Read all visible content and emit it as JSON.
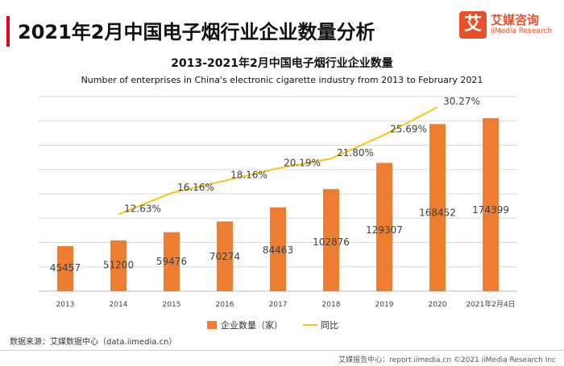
{
  "page": {
    "title": "2021年2月中国电子烟行业企业数量分析",
    "logo_glyph": "艾",
    "logo_cn": "艾媒咨询",
    "logo_en": "iiMedia Research",
    "source": "数据来源：艾媒数据中心（data.iimedia.cn）",
    "footer": "艾媒报告中心：report.iimedia.cn  ©2021  iiMedia Research  Inc"
  },
  "colors": {
    "bar": "#ed7d31",
    "line": "#f5c518",
    "accent": "#e2001a"
  },
  "chart_data": {
    "type": "bar",
    "title": "2013-2021年2月中国电子烟行业企业数量",
    "subtitle": "Number of enterprises in China's electronic cigarette industry from 2013 to February 2021",
    "categories": [
      "2013",
      "2014",
      "2015",
      "2016",
      "2017",
      "2018",
      "2019",
      "2020",
      "2021年2月4日"
    ],
    "series": [
      {
        "name": "企业数量（家）",
        "type": "bar",
        "values": [
          45457,
          51200,
          59476,
          70274,
          84463,
          102876,
          129307,
          168452,
          174399
        ]
      },
      {
        "name": "同比",
        "type": "line",
        "values": [
          null,
          12.63,
          16.16,
          18.16,
          20.19,
          21.8,
          25.69,
          30.27,
          null
        ],
        "labels": [
          "",
          "12.63%",
          "16.16%",
          "18.16%",
          "20.19%",
          "21.80%",
          "25.69%",
          "30.27%",
          ""
        ]
      }
    ],
    "ylim_bar": [
      0,
      180000
    ],
    "ylim_line": [
      0,
      32
    ],
    "grid": true,
    "legend": "bottom-center"
  }
}
